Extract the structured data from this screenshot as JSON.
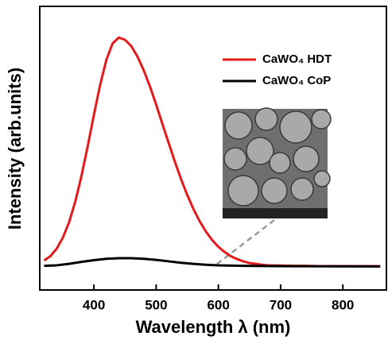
{
  "chart_data": {
    "type": "line",
    "xlabel": "Wavelength λ (nm)",
    "ylabel": "Intensity (arb.units)",
    "xlim": [
      313,
      870
    ],
    "ylim": [
      0,
      1
    ],
    "xticks": [
      400,
      500,
      600,
      700,
      800
    ],
    "legend": "upper right",
    "series": [
      {
        "name": "CaWO₄ HDT",
        "color": "#e31a1c",
        "x": [
          320,
          330,
          340,
          350,
          360,
          370,
          380,
          390,
          400,
          410,
          420,
          430,
          440,
          450,
          460,
          470,
          480,
          490,
          500,
          510,
          520,
          530,
          540,
          550,
          560,
          570,
          580,
          590,
          600,
          610,
          620,
          630,
          640,
          650,
          660,
          670,
          680,
          700,
          720,
          740,
          760,
          780,
          800,
          820,
          840,
          860
        ],
        "values": [
          0.104,
          0.119,
          0.145,
          0.184,
          0.238,
          0.311,
          0.402,
          0.506,
          0.617,
          0.723,
          0.811,
          0.869,
          0.89,
          0.882,
          0.86,
          0.823,
          0.775,
          0.718,
          0.654,
          0.586,
          0.519,
          0.453,
          0.391,
          0.335,
          0.285,
          0.242,
          0.206,
          0.176,
          0.152,
          0.134,
          0.119,
          0.109,
          0.101,
          0.095,
          0.092,
          0.089,
          0.087,
          0.086,
          0.085,
          0.085,
          0.084,
          0.084,
          0.084,
          0.084,
          0.084,
          0.084
        ]
      },
      {
        "name": "CaWO₄ CoP",
        "color": "#000000",
        "x": [
          320,
          340,
          360,
          380,
          400,
          420,
          440,
          460,
          480,
          500,
          520,
          540,
          560,
          580,
          600,
          640,
          700,
          860
        ],
        "values": [
          0.085,
          0.087,
          0.092,
          0.099,
          0.105,
          0.11,
          0.112,
          0.112,
          0.11,
          0.106,
          0.101,
          0.096,
          0.092,
          0.089,
          0.087,
          0.085,
          0.084,
          0.083
        ]
      }
    ]
  }
}
